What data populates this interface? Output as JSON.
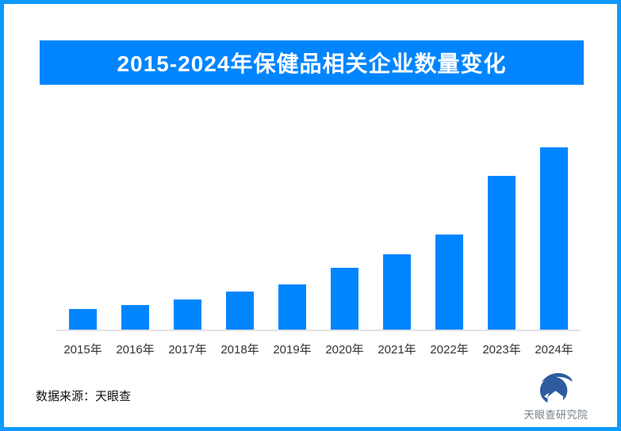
{
  "page": {
    "background": "#ffffff",
    "border_color": "#0d9afc"
  },
  "banner": {
    "background": "#0085ff",
    "text_color": "#ffffff"
  },
  "chart_data": {
    "type": "bar",
    "title": "2015-2024年保健品相关企业数量变化",
    "categories": [
      "2015年",
      "2016年",
      "2017年",
      "2018年",
      "2019年",
      "2020年",
      "2021年",
      "2022年",
      "2023年",
      "2024年"
    ],
    "values": [
      11.3,
      13.5,
      16.5,
      20.9,
      24.8,
      34.0,
      41.2,
      52.3,
      84.5,
      100
    ],
    "value_note": "relative bar heights, percent of 2024 bar; no y-axis or value labels shown",
    "bar_color": "#0085ff",
    "xlabel": "",
    "ylabel": "",
    "grid": false,
    "legend": false,
    "y_axis_visible": false,
    "axis_line_color": "#e2e2e2",
    "tick_label_color": "#333333"
  },
  "footer": {
    "source_label": "数据来源：天眼查",
    "logo_text": "天眼查研究院",
    "logo_icon": "tianyancha-eye-icon",
    "logo_color": "#2e5c9e",
    "logo_text_color": "#75808c"
  }
}
